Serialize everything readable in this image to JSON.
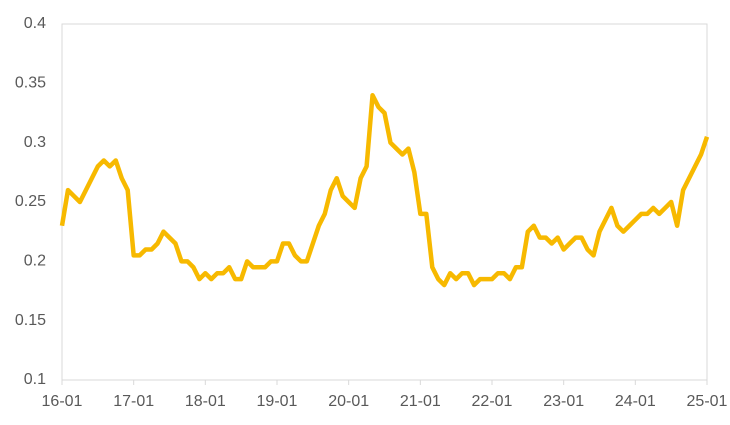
{
  "chart_data": {
    "type": "line",
    "x": [
      "16-01",
      "16-02",
      "16-03",
      "16-04",
      "16-05",
      "16-06",
      "16-07",
      "16-08",
      "16-09",
      "16-10",
      "16-11",
      "16-12",
      "17-01",
      "17-02",
      "17-03",
      "17-04",
      "17-05",
      "17-06",
      "17-07",
      "17-08",
      "17-09",
      "17-10",
      "17-11",
      "17-12",
      "18-01",
      "18-02",
      "18-03",
      "18-04",
      "18-05",
      "18-06",
      "18-07",
      "18-08",
      "18-09",
      "18-10",
      "18-11",
      "18-12",
      "19-01",
      "19-02",
      "19-03",
      "19-04",
      "19-05",
      "19-06",
      "19-07",
      "19-08",
      "19-09",
      "19-10",
      "19-11",
      "19-12",
      "20-01",
      "20-02",
      "20-03",
      "20-04",
      "20-05",
      "20-06",
      "20-07",
      "20-08",
      "20-09",
      "20-10",
      "20-11",
      "20-12",
      "21-01",
      "21-02",
      "21-03",
      "21-04",
      "21-05",
      "21-06",
      "21-07",
      "21-08",
      "21-09",
      "21-10",
      "21-11",
      "21-12",
      "22-01",
      "22-02",
      "22-03",
      "22-04",
      "22-05",
      "22-06",
      "22-07",
      "22-08",
      "22-09",
      "22-10",
      "22-11",
      "22-12",
      "23-01",
      "23-02",
      "23-03",
      "23-04",
      "23-05",
      "23-06",
      "23-07",
      "23-08",
      "23-09",
      "23-10",
      "23-11",
      "23-12",
      "24-01",
      "24-02",
      "24-03",
      "24-04",
      "24-05",
      "24-06",
      "24-07",
      "24-08",
      "24-09",
      "24-10",
      "24-11",
      "24-12",
      "25-01"
    ],
    "series": [
      {
        "color": "#f7b900",
        "values": [
          0.23,
          0.26,
          0.255,
          0.25,
          0.26,
          0.27,
          0.28,
          0.285,
          0.28,
          0.285,
          0.27,
          0.26,
          0.205,
          0.205,
          0.21,
          0.21,
          0.215,
          0.225,
          0.22,
          0.215,
          0.2,
          0.2,
          0.195,
          0.185,
          0.19,
          0.185,
          0.19,
          0.19,
          0.195,
          0.185,
          0.185,
          0.2,
          0.195,
          0.195,
          0.195,
          0.2,
          0.2,
          0.215,
          0.215,
          0.205,
          0.2,
          0.2,
          0.215,
          0.23,
          0.24,
          0.26,
          0.27,
          0.255,
          0.25,
          0.245,
          0.27,
          0.28,
          0.34,
          0.33,
          0.325,
          0.3,
          0.295,
          0.29,
          0.295,
          0.275,
          0.24,
          0.24,
          0.195,
          0.185,
          0.18,
          0.19,
          0.185,
          0.19,
          0.19,
          0.18,
          0.185,
          0.185,
          0.185,
          0.19,
          0.19,
          0.185,
          0.195,
          0.195,
          0.225,
          0.23,
          0.22,
          0.22,
          0.215,
          0.22,
          0.21,
          0.215,
          0.22,
          0.22,
          0.21,
          0.205,
          0.225,
          0.235,
          0.245,
          0.23,
          0.225,
          0.23,
          0.235,
          0.24,
          0.24,
          0.245,
          0.24,
          0.245,
          0.25,
          0.23,
          0.26,
          0.27,
          0.28,
          0.29,
          0.305
        ]
      }
    ],
    "ylim": [
      0.1,
      0.4
    ],
    "yticks": [
      0.1,
      0.15,
      0.2,
      0.25,
      0.3,
      0.35,
      0.4
    ],
    "xticks": [
      "16-01",
      "17-01",
      "18-01",
      "19-01",
      "20-01",
      "21-01",
      "22-01",
      "23-01",
      "24-01",
      "25-01"
    ]
  }
}
